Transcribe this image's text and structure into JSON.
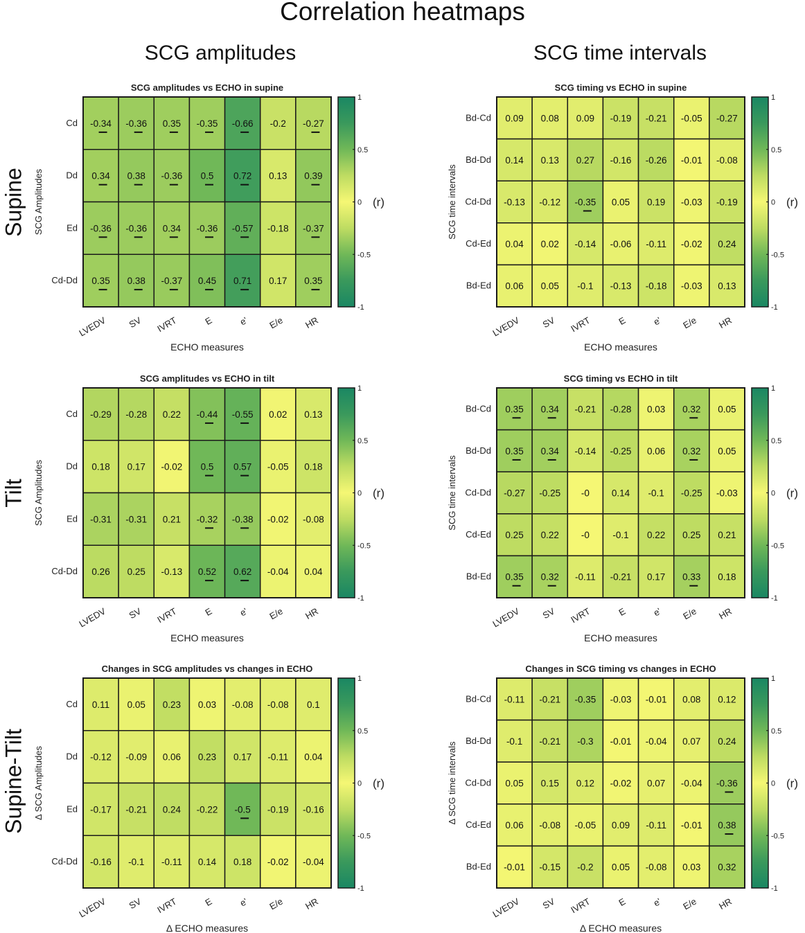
{
  "title": "Correlation heatmaps",
  "column_headers": [
    "SCG amplitudes",
    "SCG time intervals"
  ],
  "row_headers": [
    "Supine",
    "Tilt",
    "Supine-Tilt"
  ],
  "colors": {
    "zero": "#f5f774",
    "one": "#1a8763",
    "grid": "#1a1a1a"
  },
  "chart_data": [
    {
      "type": "heatmap",
      "title": "SCG amplitudes vs ECHO in supine",
      "xlabel": "ECHO measures",
      "ylabel": "SCG Amplitudes",
      "x": [
        "LVEDV",
        "SV",
        "IVRT",
        "E",
        "e'",
        "E/e",
        "HR"
      ],
      "y": [
        "Cd",
        "Dd",
        "Ed",
        "Cd-Dd"
      ],
      "values": [
        [
          -0.34,
          -0.36,
          0.35,
          -0.35,
          -0.66,
          -0.2,
          -0.27
        ],
        [
          0.34,
          0.38,
          -0.36,
          0.5,
          0.72,
          0.13,
          0.39
        ],
        [
          -0.36,
          -0.36,
          0.34,
          -0.36,
          -0.57,
          -0.18,
          -0.37
        ],
        [
          0.35,
          0.38,
          -0.37,
          0.45,
          0.71,
          0.17,
          0.35
        ]
      ],
      "underlined": [
        [
          1,
          1,
          1,
          1,
          1,
          0,
          1
        ],
        [
          1,
          1,
          1,
          1,
          1,
          0,
          1
        ],
        [
          1,
          1,
          1,
          1,
          1,
          0,
          1
        ],
        [
          1,
          1,
          1,
          1,
          1,
          0,
          1
        ]
      ],
      "colorbar": {
        "range": [
          -1,
          1
        ],
        "ticks": [
          "1",
          "0.5",
          "0",
          "-0.5",
          "-1"
        ],
        "label": "(r)"
      }
    },
    {
      "type": "heatmap",
      "title": "SCG timing vs ECHO in supine",
      "xlabel": "ECHO measures",
      "ylabel": "SCG time intervals",
      "x": [
        "LVEDV",
        "SV",
        "IVRT",
        "E",
        "e'",
        "E/e",
        "HR"
      ],
      "y": [
        "Bd-Cd",
        "Bd-Dd",
        "Cd-Dd",
        "Cd-Ed",
        "Bd-Ed"
      ],
      "values": [
        [
          0.09,
          0.08,
          0.09,
          -0.19,
          -0.21,
          -0.05,
          -0.27
        ],
        [
          0.14,
          0.13,
          0.27,
          -0.16,
          -0.26,
          -0.01,
          -0.08
        ],
        [
          -0.13,
          -0.12,
          -0.35,
          0.05,
          0.19,
          -0.03,
          -0.19
        ],
        [
          0.04,
          0.02,
          -0.14,
          -0.06,
          -0.11,
          -0.02,
          0.24
        ],
        [
          0.06,
          0.05,
          -0.1,
          -0.13,
          -0.18,
          -0.03,
          0.13
        ]
      ],
      "underlined": [
        [
          0,
          0,
          0,
          0,
          0,
          0,
          0
        ],
        [
          0,
          0,
          0,
          0,
          0,
          0,
          0
        ],
        [
          0,
          0,
          1,
          0,
          0,
          0,
          0
        ],
        [
          0,
          0,
          0,
          0,
          0,
          0,
          0
        ],
        [
          0,
          0,
          0,
          0,
          0,
          0,
          0
        ]
      ],
      "colorbar": {
        "range": [
          -1,
          1
        ],
        "ticks": [
          "1",
          "0.5",
          "0",
          "-0.5",
          "-1"
        ],
        "label": "(r)"
      }
    },
    {
      "type": "heatmap",
      "title": "SCG amplitudes vs ECHO in tilt",
      "xlabel": "ECHO measures",
      "ylabel": "SCG Amplitudes",
      "x": [
        "LVEDV",
        "SV",
        "IVRT",
        "E",
        "e'",
        "E/e",
        "HR"
      ],
      "y": [
        "Cd",
        "Dd",
        "Ed",
        "Cd-Dd"
      ],
      "values": [
        [
          -0.29,
          -0.28,
          0.22,
          -0.44,
          -0.55,
          0.02,
          0.13
        ],
        [
          0.18,
          0.17,
          -0.02,
          0.5,
          0.57,
          -0.05,
          0.18
        ],
        [
          -0.31,
          -0.31,
          0.21,
          -0.32,
          -0.38,
          -0.02,
          -0.08
        ],
        [
          0.26,
          0.25,
          -0.13,
          0.52,
          0.62,
          -0.04,
          0.04
        ]
      ],
      "underlined": [
        [
          0,
          0,
          0,
          1,
          1,
          0,
          0
        ],
        [
          0,
          0,
          0,
          1,
          1,
          0,
          0
        ],
        [
          0,
          0,
          0,
          1,
          1,
          0,
          0
        ],
        [
          0,
          0,
          0,
          1,
          1,
          0,
          0
        ]
      ],
      "colorbar": {
        "range": [
          -1,
          1
        ],
        "ticks": [
          "1",
          "0.5",
          "0",
          "-0.5",
          "-1"
        ],
        "label": "(r)"
      }
    },
    {
      "type": "heatmap",
      "title": "SCG timing vs ECHO in tilt",
      "xlabel": "ECHO measures",
      "ylabel": "SCG time intervals",
      "x": [
        "LVEDV",
        "SV",
        "IVRT",
        "E",
        "e'",
        "E/e",
        "HR"
      ],
      "y": [
        "Bd-Cd",
        "Bd-Dd",
        "Cd-Dd",
        "Cd-Ed",
        "Bd-Ed"
      ],
      "values": [
        [
          0.35,
          0.34,
          -0.21,
          -0.28,
          0.03,
          0.32,
          0.05
        ],
        [
          0.35,
          0.34,
          -0.14,
          -0.25,
          0.06,
          0.32,
          0.05
        ],
        [
          -0.27,
          -0.25,
          0,
          0.14,
          -0.1,
          -0.25,
          -0.03
        ],
        [
          0.25,
          0.22,
          0,
          -0.1,
          0.22,
          0.25,
          0.21
        ],
        [
          0.35,
          0.32,
          -0.11,
          -0.21,
          0.17,
          0.33,
          0.18
        ]
      ],
      "value_labels": [
        [
          "0.35",
          "0.34",
          "-0.21",
          "-0.28",
          "0.03",
          "0.32",
          "0.05"
        ],
        [
          "0.35",
          "0.34",
          "-0.14",
          "-0.25",
          "0.06",
          "0.32",
          "0.05"
        ],
        [
          "-0.27",
          "-0.25",
          "-0",
          "0.14",
          "-0.1",
          "-0.25",
          "-0.03"
        ],
        [
          "0.25",
          "0.22",
          "-0",
          "-0.1",
          "0.22",
          "0.25",
          "0.21"
        ],
        [
          "0.35",
          "0.32",
          "-0.11",
          "-0.21",
          "0.17",
          "0.33",
          "0.18"
        ]
      ],
      "underlined": [
        [
          1,
          1,
          0,
          0,
          0,
          1,
          0
        ],
        [
          1,
          1,
          0,
          0,
          0,
          1,
          0
        ],
        [
          0,
          0,
          0,
          0,
          0,
          0,
          0
        ],
        [
          0,
          0,
          0,
          0,
          0,
          0,
          0
        ],
        [
          1,
          1,
          0,
          0,
          0,
          1,
          0
        ]
      ],
      "colorbar": {
        "range": [
          -1,
          1
        ],
        "ticks": [
          "1",
          "0.5",
          "0",
          "-0.5",
          "-1"
        ],
        "label": "(r)"
      }
    },
    {
      "type": "heatmap",
      "title": "Changes in  SCG amplitudes  vs changes in ECHO",
      "xlabel": "Δ ECHO measures",
      "ylabel": "Δ SCG Amplitudes",
      "x": [
        "LVEDV",
        "SV",
        "IVRT",
        "E",
        "e'",
        "E/e",
        "HR"
      ],
      "y": [
        "Cd",
        "Dd",
        "Ed",
        "Cd-Dd"
      ],
      "values": [
        [
          0.11,
          0.05,
          0.23,
          0.03,
          -0.08,
          -0.08,
          0.1
        ],
        [
          -0.12,
          -0.09,
          0.06,
          0.23,
          0.17,
          -0.11,
          0.04
        ],
        [
          -0.17,
          -0.21,
          0.24,
          -0.22,
          -0.5,
          -0.19,
          -0.16
        ],
        [
          -0.16,
          -0.1,
          -0.11,
          0.14,
          0.18,
          -0.02,
          -0.04
        ]
      ],
      "underlined": [
        [
          0,
          0,
          0,
          0,
          0,
          0,
          0
        ],
        [
          0,
          0,
          0,
          0,
          0,
          0,
          0
        ],
        [
          0,
          0,
          0,
          0,
          1,
          0,
          0
        ],
        [
          0,
          0,
          0,
          0,
          0,
          0,
          0
        ]
      ],
      "colorbar": {
        "range": [
          -1,
          1
        ],
        "ticks": [
          "1",
          "0.5",
          "0",
          "-0.5",
          "-1"
        ],
        "label": "(r)"
      }
    },
    {
      "type": "heatmap",
      "title": "Changes in  SCG timing vs changes in ECHO",
      "xlabel": "Δ ECHO measures",
      "ylabel": "Δ SCG time intervals",
      "x": [
        "LVEDV",
        "SV",
        "IVRT",
        "E",
        "e'",
        "E/e",
        "HR"
      ],
      "y": [
        "Bd-Cd",
        "Bd-Dd",
        "Cd-Dd",
        "Cd-Ed",
        "Bd-Ed"
      ],
      "values": [
        [
          -0.11,
          -0.21,
          -0.35,
          -0.03,
          -0.01,
          0.08,
          0.12
        ],
        [
          -0.1,
          -0.21,
          -0.3,
          -0.01,
          -0.04,
          0.07,
          0.24
        ],
        [
          0.05,
          0.15,
          0.12,
          -0.02,
          0.07,
          -0.04,
          -0.36
        ],
        [
          0.06,
          -0.08,
          -0.05,
          0.09,
          -0.11,
          -0.01,
          0.38
        ],
        [
          -0.01,
          -0.15,
          -0.2,
          0.05,
          -0.08,
          0.03,
          0.32
        ]
      ],
      "underlined": [
        [
          0,
          0,
          0,
          0,
          0,
          0,
          0
        ],
        [
          0,
          0,
          0,
          0,
          0,
          0,
          0
        ],
        [
          0,
          0,
          0,
          0,
          0,
          0,
          1
        ],
        [
          0,
          0,
          0,
          0,
          0,
          0,
          1
        ],
        [
          0,
          0,
          0,
          0,
          0,
          0,
          0
        ]
      ],
      "colorbar": {
        "range": [
          -1,
          1
        ],
        "ticks": [
          "1",
          "0.5",
          "0",
          "-0.5",
          "-1"
        ],
        "label": "(r)"
      }
    }
  ]
}
